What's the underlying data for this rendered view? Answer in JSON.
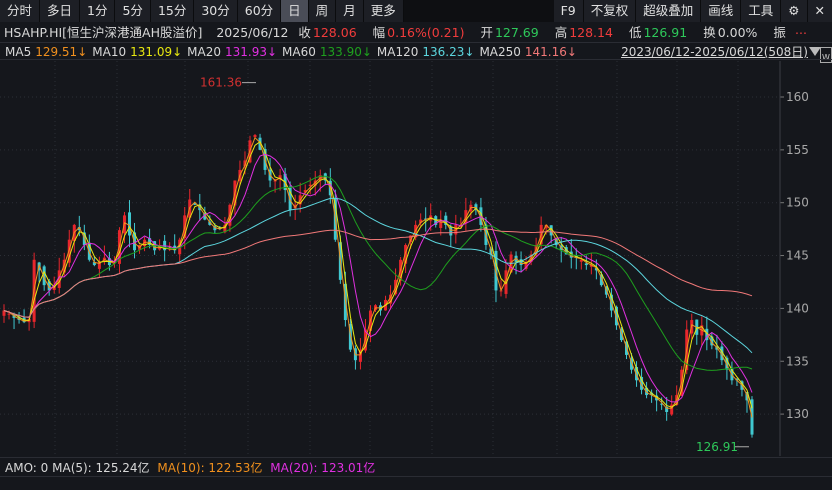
{
  "toolbar": {
    "tabs": [
      "分时",
      "多日",
      "1分",
      "5分",
      "15分",
      "30分",
      "60分",
      "日",
      "周",
      "月",
      "更多"
    ],
    "active": "日",
    "right": [
      "F9",
      "不复权",
      "超级叠加",
      "画线",
      "工具"
    ],
    "settings_icon": "gear-icon",
    "close_icon": "close-icon"
  },
  "info": {
    "code_name": "HSAHP.HI[恒生沪深港通AH股溢价]",
    "date": "2025/06/12",
    "close_label": "收",
    "close": "128.06",
    "change_label": "幅",
    "change": "0.16%(0.21)",
    "open_label": "开",
    "open": "127.69",
    "high_label": "高",
    "high": "128.14",
    "low_label": "低",
    "low": "126.91",
    "turnover_label": "换",
    "turnover": "0.00%",
    "amp_label": "振",
    "more": "..."
  },
  "ma_legend": [
    {
      "label": "MA5",
      "value": "129.51↓",
      "color": "#f0901e"
    },
    {
      "label": "MA10",
      "value": "131.09↓",
      "color": "#e8e810"
    },
    {
      "label": "MA20",
      "value": "131.93↓",
      "color": "#e030e0"
    },
    {
      "label": "MA60",
      "value": "133.90↓",
      "color": "#1ea01e"
    },
    {
      "label": "MA120",
      "value": "136.23↓",
      "color": "#5cd6de"
    },
    {
      "label": "MA250",
      "value": "141.16↓",
      "color": "#f07878"
    }
  ],
  "range": "2023/06/12-2025/06/12(508日)",
  "amo": {
    "label": "AMO: 0",
    "ma5": "MA(5): 125.24亿",
    "ma10": "MA(10): 122.53亿",
    "ma20": "MA(20): 123.01亿",
    "ma5_color": "#d8d8d8",
    "ma10_color": "#f0901e",
    "ma20_color": "#e030e0"
  },
  "chart_data": {
    "type": "candlestick",
    "yticks": [
      160,
      155,
      150,
      145,
      140,
      135,
      130
    ],
    "ylim": [
      126,
      162
    ],
    "grid": true,
    "up_color": "#e8262c",
    "down_color": "#40c8d0",
    "max_label": "161.36",
    "min_label": "126.91",
    "close": [
      139.8,
      139.5,
      139.1,
      138.9,
      138.7,
      139.0,
      144.6,
      143.6,
      142.2,
      141.7,
      142.2,
      143.6,
      144.6,
      146.5,
      147.9,
      147.4,
      146.0,
      144.6,
      144.1,
      144.4,
      144.8,
      144.1,
      144.4,
      147.4,
      148.8,
      146.9,
      145.5,
      146.0,
      146.5,
      146.0,
      145.5,
      146.0,
      145.5,
      145.7,
      145.5,
      146.5,
      148.8,
      150.3,
      149.8,
      149.3,
      148.4,
      147.9,
      147.4,
      147.6,
      147.9,
      149.8,
      152.1,
      153.1,
      154.0,
      155.9,
      156.4,
      155.0,
      153.1,
      152.1,
      152.1,
      152.6,
      151.2,
      149.3,
      149.8,
      150.7,
      151.2,
      151.7,
      152.1,
      152.6,
      152.1,
      150.7,
      146.5,
      142.7,
      138.9,
      136.1,
      135.1,
      136.1,
      138.0,
      139.8,
      140.3,
      139.8,
      140.8,
      141.3,
      142.7,
      144.6,
      146.0,
      146.9,
      147.9,
      148.4,
      148.4,
      148.8,
      147.9,
      148.4,
      147.9,
      146.9,
      147.9,
      147.9,
      149.3,
      149.8,
      149.3,
      147.9,
      146.0,
      145.1,
      141.7,
      141.7,
      143.6,
      145.1,
      144.4,
      144.1,
      144.4,
      145.1,
      146.0,
      147.9,
      147.9,
      146.9,
      146.0,
      145.5,
      145.1,
      144.8,
      144.8,
      144.6,
      144.1,
      144.1,
      143.6,
      142.2,
      141.3,
      139.8,
      138.4,
      137.0,
      135.6,
      134.2,
      133.2,
      132.3,
      131.8,
      131.8,
      131.3,
      130.9,
      130.2,
      130.9,
      131.8,
      134.2,
      138.0,
      138.9,
      137.5,
      138.4,
      137.0,
      136.5,
      136.1,
      135.1,
      134.2,
      133.2,
      133.2,
      132.3,
      131.3,
      128.06
    ]
  }
}
